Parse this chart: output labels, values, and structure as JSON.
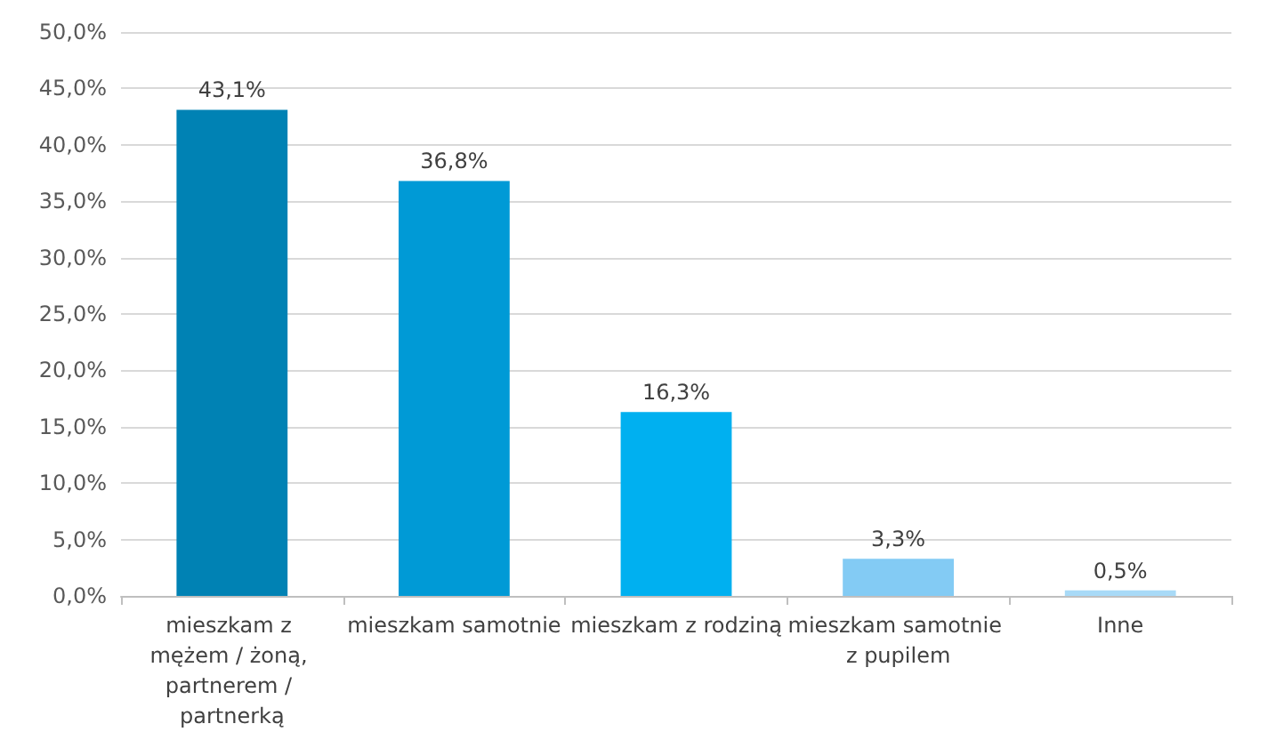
{
  "chart_data": {
    "type": "bar",
    "categories": [
      "mieszkam z mężem / żoną, partnerem / partnerką",
      "mieszkam samotnie",
      "mieszkam z rodziną",
      "mieszkam samotnie z pupilem",
      "Inne"
    ],
    "values": [
      43.1,
      36.8,
      16.3,
      3.3,
      0.5
    ],
    "colors": [
      "#0082b4",
      "#009ad6",
      "#00b0f0",
      "#83cbf4",
      "#a8daf7"
    ],
    "value_labels": [
      "43,1%",
      "36,8%",
      "16,3%",
      "3,3%",
      "0,5%"
    ],
    "ylim": [
      0,
      50
    ],
    "yticks": [
      {
        "value": 0,
        "label": "0,0%"
      },
      {
        "value": 5,
        "label": "5,0%"
      },
      {
        "value": 10,
        "label": "10,0%"
      },
      {
        "value": 15,
        "label": "15,0%"
      },
      {
        "value": 20,
        "label": "20,0%"
      },
      {
        "value": 25,
        "label": "25,0%"
      },
      {
        "value": 30,
        "label": "30,0%"
      },
      {
        "value": 35,
        "label": "35,0%"
      },
      {
        "value": 40,
        "label": "40,0%"
      },
      {
        "value": 45,
        "label": "45,0%"
      },
      {
        "value": 50,
        "label": "50,0%"
      }
    ],
    "grid": "y"
  }
}
